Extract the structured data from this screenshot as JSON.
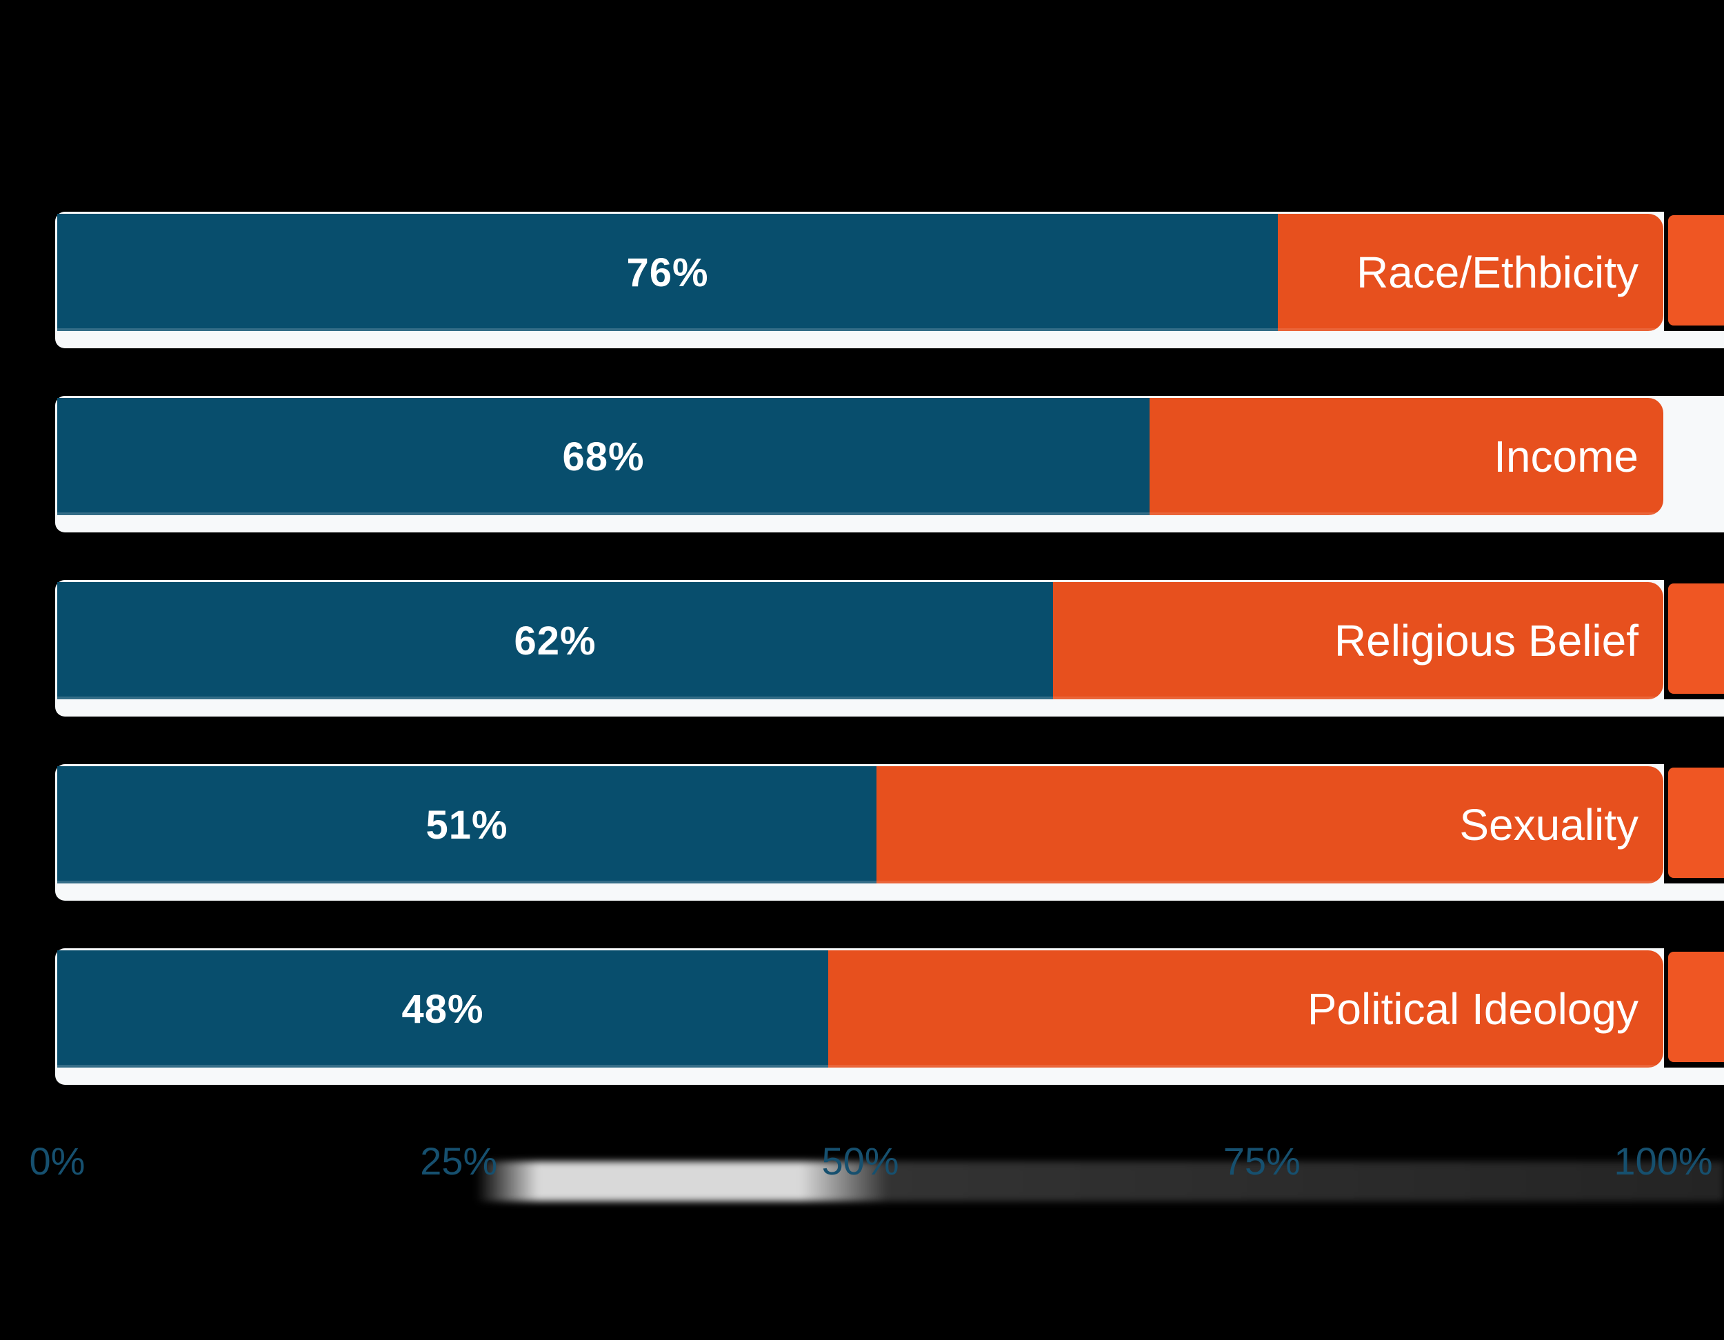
{
  "colors": {
    "background": "#000000",
    "bar_blue": "#084E6D",
    "bar_orange": "#E7501E",
    "edge_orange": "#EF5623",
    "track_white": "#F7F9FA",
    "axis_text": "#16506F",
    "bar_text": "#FFFFFF"
  },
  "chart_data": {
    "type": "bar",
    "orientation": "horizontal",
    "stacked": true,
    "title": "",
    "xlabel": "",
    "ylabel": "",
    "xlim": [
      0,
      100
    ],
    "grid": false,
    "legend": "none",
    "categories": [
      "Race/Ethbicity",
      "Income",
      "Religious Belief",
      "Sexuality",
      "Political Ideology"
    ],
    "series": [
      {
        "name": "blue_segment",
        "color": "#084E6D",
        "values": [
          76,
          68,
          62,
          51,
          48
        ]
      },
      {
        "name": "orange_remainder",
        "color": "#E7501E",
        "values": [
          24,
          32,
          38,
          49,
          52
        ]
      }
    ],
    "value_labels": [
      "76%",
      "68%",
      "62%",
      "51%",
      "48%"
    ],
    "axis_tick_labels": [
      "0%",
      "25%",
      "50%",
      "75%",
      "100%"
    ]
  },
  "rows": [
    {
      "value": 76,
      "value_label": "76%",
      "category_label": "Race/Ethbicity",
      "edge_block": "orange"
    },
    {
      "value": 68,
      "value_label": "68%",
      "category_label": "Income",
      "edge_block": "white"
    },
    {
      "value": 62,
      "value_label": "62%",
      "category_label": "Religious Belief",
      "edge_block": "orange"
    },
    {
      "value": 51,
      "value_label": "51%",
      "category_label": "Sexuality",
      "edge_block": "orange"
    },
    {
      "value": 48,
      "value_label": "48%",
      "category_label": "Political Ideology",
      "edge_block": "orange"
    }
  ],
  "axis": {
    "ticks": [
      {
        "label": "0%",
        "value": 0
      },
      {
        "label": "25%",
        "value": 25
      },
      {
        "label": "50%",
        "value": 50
      },
      {
        "label": "75%",
        "value": 75
      },
      {
        "label": "100%",
        "value": 100
      }
    ]
  }
}
